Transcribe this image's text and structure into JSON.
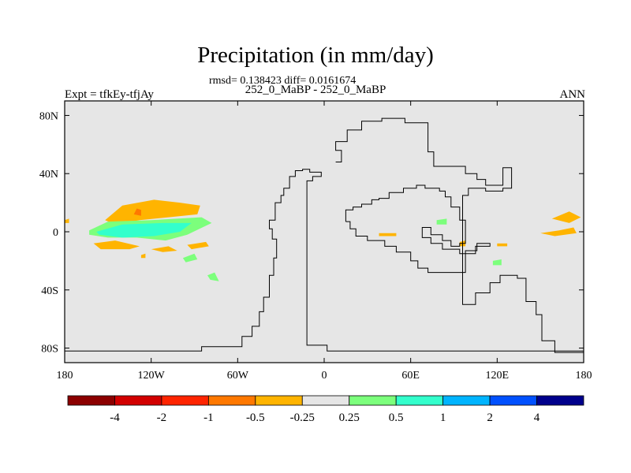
{
  "chart_data": {
    "type": "heatmap",
    "title": "Precipitation (in mm/day)",
    "stats": "rmsd= 0.138423 diff= 0.0161674",
    "subtitle": "252_0_MaBP - 252_0_MaBP",
    "left_label": "Expt = tfkEy-tfjAy",
    "right_label": "ANN",
    "grid": false,
    "xlim": [
      -180,
      180
    ],
    "ylim": [
      -90,
      90
    ],
    "x_ticks": [
      {
        "value": -180,
        "label": "180"
      },
      {
        "value": -120,
        "label": "120W"
      },
      {
        "value": -60,
        "label": "60W"
      },
      {
        "value": 0,
        "label": "0"
      },
      {
        "value": 60,
        "label": "60E"
      },
      {
        "value": 120,
        "label": "120E"
      },
      {
        "value": 180,
        "label": "180"
      }
    ],
    "y_ticks": [
      {
        "value": 80,
        "label": "80N"
      },
      {
        "value": 40,
        "label": "40N"
      },
      {
        "value": 0,
        "label": "0"
      },
      {
        "value": -40,
        "label": "40S"
      },
      {
        "value": -80,
        "label": "80S"
      }
    ],
    "background_color": "#e6e6e6",
    "colorbar": {
      "placement": "bottom",
      "colors": [
        "#8c0000",
        "#d20000",
        "#ff2400",
        "#ff7800",
        "#ffb400",
        "#e6e6e6",
        "#7cff7c",
        "#33ffcc",
        "#00b4ff",
        "#0050ff",
        "#00008c"
      ],
      "labels": [
        "-4",
        "-2",
        "-1",
        "-0.5",
        "-0.25",
        "0.25",
        "0.5",
        "1",
        "2",
        "4"
      ]
    },
    "contour_regions": [
      {
        "value_class": "-0.25 to -0.5",
        "color": "#ffb400",
        "lonlat": [
          [
            -152,
            8
          ],
          [
            -140,
            18
          ],
          [
            -118,
            22
          ],
          [
            -100,
            20
          ],
          [
            -86,
            18
          ],
          [
            -88,
            12
          ],
          [
            -108,
            10
          ],
          [
            -128,
            8
          ],
          [
            -145,
            5
          ]
        ]
      },
      {
        "value_class": "-0.5 to -1",
        "color": "#ff7800",
        "lonlat": [
          [
            -132,
            12
          ],
          [
            -130,
            16
          ],
          [
            -127,
            15
          ],
          [
            -127,
            11
          ]
        ]
      },
      {
        "value_class": "0.25 to 0.5",
        "color": "#7cff7c",
        "lonlat": [
          [
            -163,
            1
          ],
          [
            -150,
            7
          ],
          [
            -120,
            8
          ],
          [
            -85,
            10
          ],
          [
            -78,
            6
          ],
          [
            -95,
            -2
          ],
          [
            -110,
            -6
          ],
          [
            -130,
            -4
          ],
          [
            -150,
            -4
          ],
          [
            -163,
            -2
          ]
        ]
      },
      {
        "value_class": "0.5 to 1",
        "color": "#33ffcc",
        "lonlat": [
          [
            -158,
            0
          ],
          [
            -140,
            5
          ],
          [
            -112,
            6
          ],
          [
            -92,
            6
          ],
          [
            -100,
            0
          ],
          [
            -118,
            -3
          ],
          [
            -140,
            -4
          ],
          [
            -156,
            -2
          ]
        ]
      },
      {
        "value_class": "-0.25 to -0.5",
        "color": "#ffb400",
        "lonlat": [
          [
            -160,
            -8
          ],
          [
            -145,
            -6
          ],
          [
            -128,
            -10
          ],
          [
            -135,
            -12
          ],
          [
            -155,
            -12
          ]
        ]
      },
      {
        "value_class": "-0.25 to -0.5",
        "color": "#ffb400",
        "lonlat": [
          [
            -120,
            -12
          ],
          [
            -108,
            -10
          ],
          [
            -102,
            -13
          ],
          [
            -112,
            -14
          ]
        ]
      },
      {
        "value_class": "-0.25 to -0.5",
        "color": "#ffb400",
        "lonlat": [
          [
            -95,
            -9
          ],
          [
            -82,
            -7
          ],
          [
            -80,
            -10
          ],
          [
            -92,
            -12
          ]
        ]
      },
      {
        "value_class": "-0.25 to -0.5",
        "color": "#ffb400",
        "lonlat": [
          [
            -127,
            -16
          ],
          [
            -124,
            -15
          ],
          [
            -124,
            -18
          ],
          [
            -127,
            -18
          ]
        ]
      },
      {
        "value_class": "0.25 to 0.5",
        "color": "#7cff7c",
        "lonlat": [
          [
            -98,
            -18
          ],
          [
            -90,
            -15
          ],
          [
            -88,
            -19
          ],
          [
            -96,
            -21
          ]
        ]
      },
      {
        "value_class": "0.25 to 0.5",
        "color": "#7cff7c",
        "lonlat": [
          [
            -81,
            -30
          ],
          [
            -76,
            -28
          ],
          [
            -73,
            -34
          ],
          [
            -79,
            -33
          ]
        ]
      },
      {
        "value_class": "-0.25 to -0.5",
        "color": "#ffb400",
        "lonlat": [
          [
            -180,
            8
          ],
          [
            -177,
            9
          ],
          [
            -177,
            6
          ],
          [
            -180,
            6
          ]
        ]
      },
      {
        "value_class": "0.25 to 0.5",
        "color": "#7cff7c",
        "lonlat": [
          [
            78,
            8
          ],
          [
            85,
            9
          ],
          [
            85,
            5
          ],
          [
            78,
            5
          ]
        ]
      },
      {
        "value_class": "-0.25 to -0.5",
        "color": "#ffb400",
        "lonlat": [
          [
            38,
            -1
          ],
          [
            50,
            -1
          ],
          [
            50,
            -3
          ],
          [
            38,
            -3
          ]
        ]
      },
      {
        "value_class": "-0.25 to -0.5",
        "color": "#ffb400",
        "lonlat": [
          [
            94,
            -7
          ],
          [
            98,
            -6
          ],
          [
            98,
            -10
          ],
          [
            94,
            -10
          ]
        ]
      },
      {
        "value_class": "-0.25 to -0.5",
        "color": "#ffb400",
        "lonlat": [
          [
            120,
            -8
          ],
          [
            127,
            -8
          ],
          [
            127,
            -10
          ],
          [
            120,
            -10
          ]
        ]
      },
      {
        "value_class": "0.25 to 0.5",
        "color": "#7cff7c",
        "lonlat": [
          [
            117,
            -20
          ],
          [
            123,
            -19
          ],
          [
            123,
            -23
          ],
          [
            117,
            -23
          ]
        ]
      },
      {
        "value_class": "-0.25 to -0.5",
        "color": "#ffb400",
        "lonlat": [
          [
            158,
            9
          ],
          [
            170,
            14
          ],
          [
            178,
            10
          ],
          [
            170,
            6
          ]
        ]
      },
      {
        "value_class": "-0.25 to -0.5",
        "color": "#ffb400",
        "lonlat": [
          [
            150,
            -1
          ],
          [
            163,
            1
          ],
          [
            173,
            3
          ],
          [
            175,
            -1
          ],
          [
            160,
            -3
          ]
        ]
      }
    ],
    "coastlines": [
      {
        "name": "western-landmass",
        "lonlat": [
          [
            -180,
            -82
          ],
          [
            -85,
            -82
          ],
          [
            -85,
            -79
          ],
          [
            -57,
            -79
          ],
          [
            -57,
            -72
          ],
          [
            -50,
            -72
          ],
          [
            -50,
            -65
          ],
          [
            -45,
            -65
          ],
          [
            -45,
            -55
          ],
          [
            -42,
            -55
          ],
          [
            -42,
            -45
          ],
          [
            -38,
            -45
          ],
          [
            -38,
            -30
          ],
          [
            -35,
            -30
          ],
          [
            -35,
            -18
          ],
          [
            -33,
            -18
          ],
          [
            -33,
            -5
          ],
          [
            -36,
            -5
          ],
          [
            -36,
            2
          ],
          [
            -38,
            2
          ],
          [
            -38,
            8
          ],
          [
            -34,
            8
          ],
          [
            -34,
            20
          ],
          [
            -30,
            20
          ],
          [
            -30,
            25
          ],
          [
            -28,
            25
          ],
          [
            -28,
            30
          ],
          [
            -24,
            30
          ],
          [
            -24,
            38
          ],
          [
            -20,
            38
          ],
          [
            -20,
            42
          ],
          [
            -15,
            42
          ],
          [
            -15,
            43
          ],
          [
            -10,
            43
          ],
          [
            -10,
            41
          ],
          [
            -2,
            41
          ],
          [
            -2,
            38
          ],
          [
            -8,
            38
          ],
          [
            -8,
            35
          ],
          [
            -12,
            35
          ],
          [
            -12,
            -78
          ],
          [
            2,
            -78
          ],
          [
            2,
            -82
          ],
          [
            180,
            -82
          ]
        ]
      },
      {
        "name": "northern-landmass",
        "lonlat": [
          [
            8,
            48
          ],
          [
            12,
            48
          ],
          [
            12,
            56
          ],
          [
            8,
            56
          ],
          [
            8,
            62
          ],
          [
            16,
            62
          ],
          [
            16,
            70
          ],
          [
            26,
            70
          ],
          [
            26,
            76
          ],
          [
            40,
            76
          ],
          [
            40,
            78
          ],
          [
            56,
            78
          ],
          [
            56,
            75
          ],
          [
            72,
            75
          ],
          [
            72,
            55
          ],
          [
            76,
            55
          ],
          [
            76,
            45
          ],
          [
            98,
            45
          ],
          [
            98,
            40
          ],
          [
            106,
            40
          ],
          [
            106,
            36
          ],
          [
            112,
            36
          ],
          [
            112,
            32
          ],
          [
            124,
            32
          ],
          [
            124,
            44
          ],
          [
            130,
            44
          ],
          [
            130,
            30
          ],
          [
            124,
            30
          ],
          [
            124,
            28
          ],
          [
            112,
            28
          ],
          [
            112,
            30
          ],
          [
            100,
            30
          ],
          [
            100,
            25
          ],
          [
            96,
            25
          ],
          [
            96,
            -50
          ],
          [
            105,
            -50
          ],
          [
            105,
            -42
          ],
          [
            115,
            -42
          ],
          [
            115,
            -35
          ],
          [
            122,
            -35
          ],
          [
            122,
            -30
          ],
          [
            134,
            -30
          ],
          [
            134,
            -32
          ],
          [
            140,
            -32
          ],
          [
            140,
            -48
          ],
          [
            147,
            -48
          ],
          [
            147,
            -57
          ],
          [
            151,
            -57
          ],
          [
            151,
            -75
          ],
          [
            160,
            -75
          ],
          [
            160,
            -83
          ],
          [
            180,
            -83
          ]
        ]
      },
      {
        "name": "inner-coastline",
        "lonlat": [
          [
            15,
            7
          ],
          [
            15,
            15
          ],
          [
            20,
            15
          ],
          [
            20,
            17
          ],
          [
            26,
            17
          ],
          [
            26,
            19
          ],
          [
            33,
            19
          ],
          [
            33,
            22
          ],
          [
            38,
            22
          ],
          [
            38,
            23
          ],
          [
            45,
            23
          ],
          [
            45,
            27
          ],
          [
            55,
            27
          ],
          [
            55,
            30
          ],
          [
            64,
            30
          ],
          [
            64,
            32
          ],
          [
            70,
            32
          ],
          [
            70,
            30
          ],
          [
            80,
            30
          ],
          [
            80,
            28
          ],
          [
            84,
            28
          ],
          [
            84,
            24
          ],
          [
            88,
            24
          ],
          [
            88,
            17
          ],
          [
            94,
            17
          ],
          [
            94,
            8
          ],
          [
            98,
            8
          ],
          [
            98,
            -8
          ],
          [
            94,
            -8
          ],
          [
            94,
            -10
          ],
          [
            88,
            -10
          ],
          [
            88,
            -6
          ],
          [
            82,
            -6
          ],
          [
            82,
            -2
          ],
          [
            74,
            -2
          ],
          [
            74,
            3
          ],
          [
            68,
            3
          ],
          [
            68,
            -4
          ],
          [
            74,
            -4
          ],
          [
            74,
            -8
          ],
          [
            82,
            -8
          ],
          [
            82,
            -12
          ],
          [
            94,
            -12
          ],
          [
            94,
            -15
          ],
          [
            105,
            -15
          ],
          [
            105,
            -10
          ],
          [
            115,
            -10
          ],
          [
            115,
            -8
          ],
          [
            106,
            -8
          ],
          [
            106,
            -13
          ],
          [
            98,
            -13
          ],
          [
            98,
            -28
          ],
          [
            72,
            -28
          ],
          [
            72,
            -25
          ],
          [
            65,
            -25
          ],
          [
            65,
            -20
          ],
          [
            60,
            -20
          ],
          [
            60,
            -14
          ],
          [
            50,
            -14
          ],
          [
            50,
            -10
          ],
          [
            42,
            -10
          ],
          [
            42,
            -6
          ],
          [
            30,
            -6
          ],
          [
            30,
            -3
          ],
          [
            22,
            -3
          ],
          [
            22,
            2
          ],
          [
            18,
            2
          ],
          [
            18,
            7
          ],
          [
            15,
            7
          ]
        ]
      }
    ]
  }
}
